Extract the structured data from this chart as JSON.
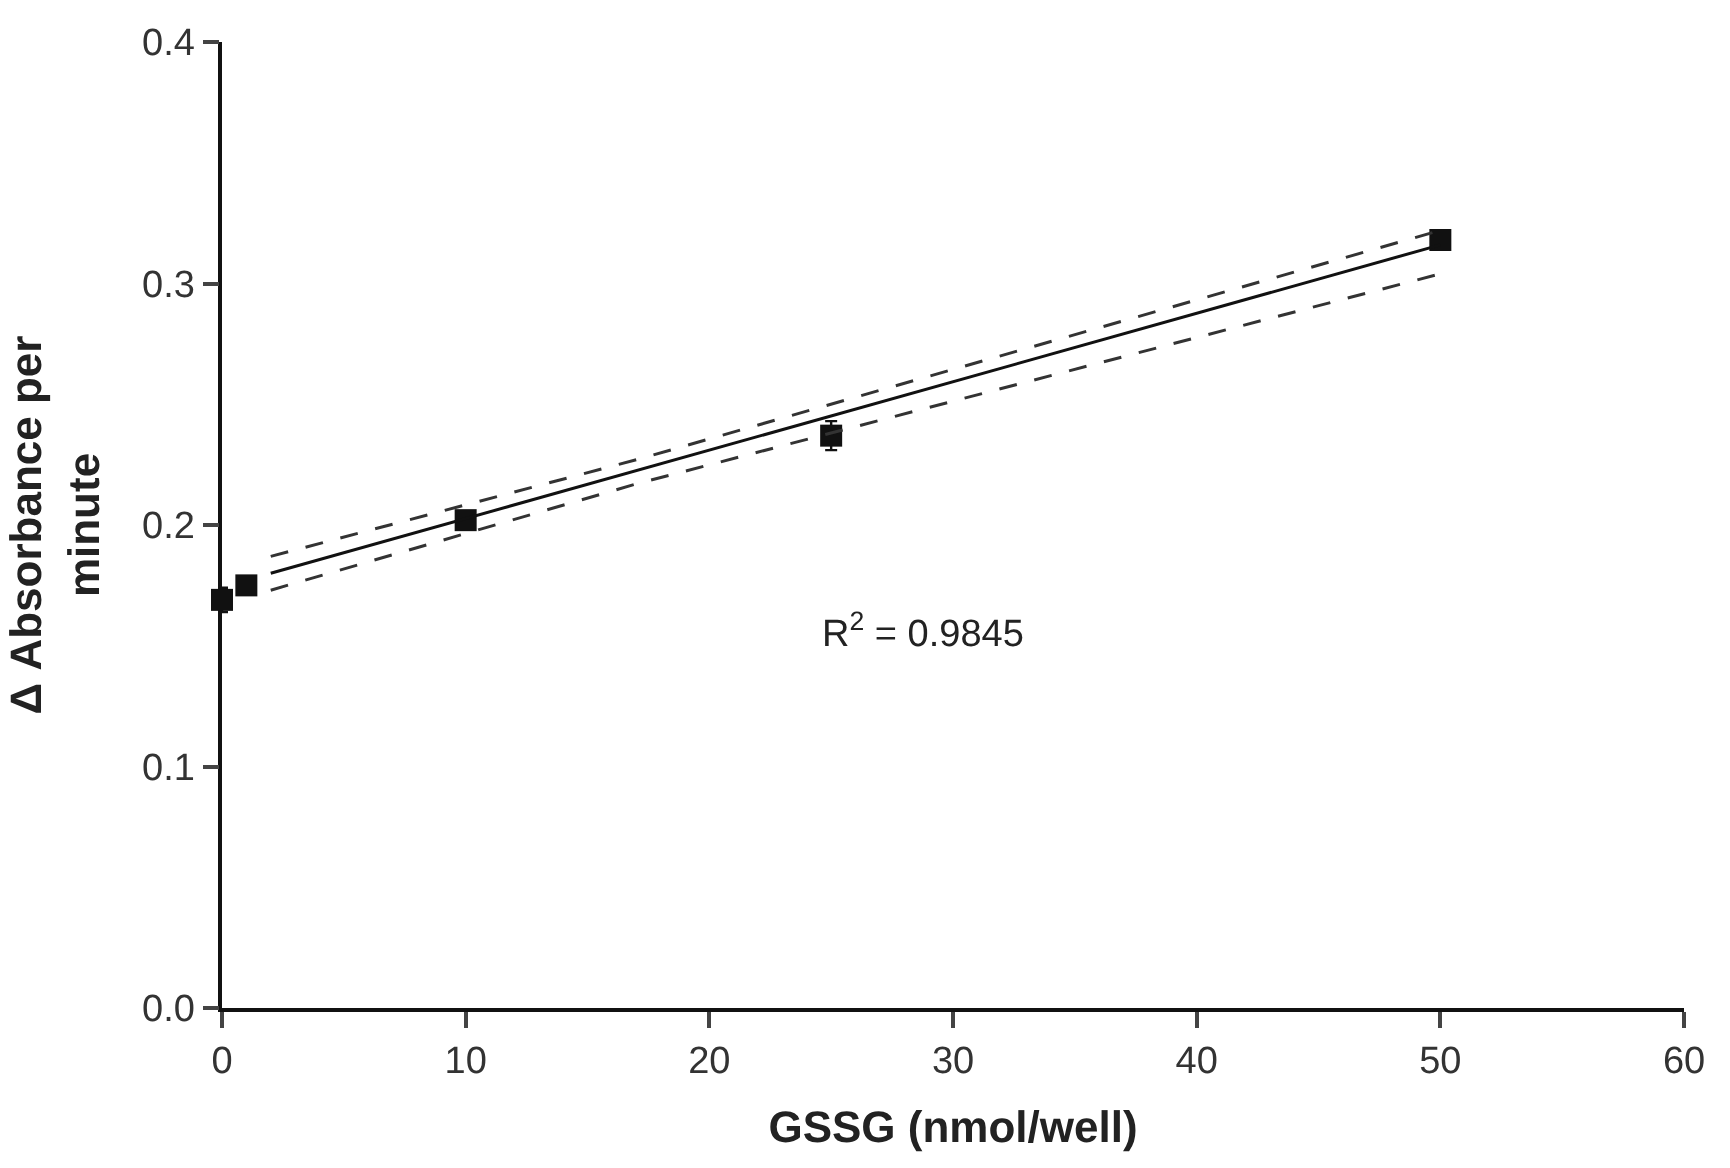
{
  "chart_data": {
    "type": "scatter",
    "xlabel": "GSSG (nmol/well)",
    "ylabel": "Δ Absorbance per minute",
    "xlim": [
      0,
      60
    ],
    "xticks": [
      0,
      10,
      20,
      30,
      40,
      50,
      60
    ],
    "ylim": [
      0,
      0.4
    ],
    "yticks": [
      {
        "value": 0,
        "label": "0.0"
      },
      0.1,
      0.2,
      0.3,
      0.4
    ],
    "marker": "square",
    "series": [
      {
        "color": "#111111",
        "x": [
          0,
          1,
          10,
          25,
          50
        ],
        "values": [
          0.169,
          0.175,
          0.202,
          0.237,
          0.318
        ],
        "errors": [
          0.005,
          null,
          null,
          0.006,
          null
        ]
      },
      {
        "type": "line",
        "color": "#111111",
        "x": [
          2,
          50
        ],
        "values": [
          0.18,
          0.316
        ],
        "line_style": "solid",
        "marker": "none"
      },
      {
        "type": "line",
        "color": "#333333",
        "x": [
          2,
          17,
          50
        ],
        "values": [
          0.187,
          0.227,
          0.322
        ],
        "line_style": "dashed",
        "marker": "none"
      },
      {
        "type": "line",
        "color": "#333333",
        "x": [
          2,
          17,
          50
        ],
        "values": [
          0.173,
          0.217,
          0.304
        ],
        "line_style": "dashed",
        "marker": "none"
      }
    ],
    "annotations": [
      "R$^{2}$ = 0.9845"
    ]
  }
}
